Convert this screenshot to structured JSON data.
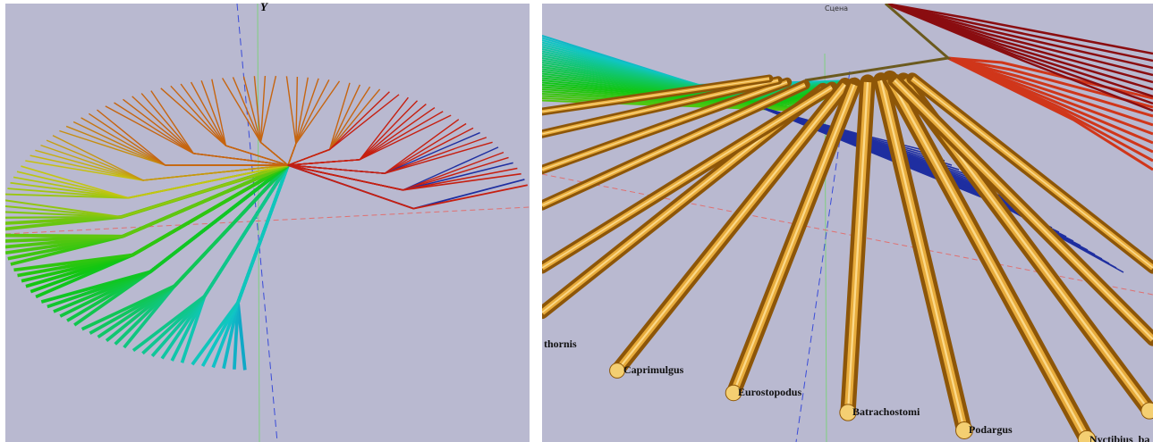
{
  "left_panel": {
    "axis_label": "Y"
  },
  "right_panel": {
    "scene_label": "Сцена",
    "leaf_labels": [
      "thornis",
      "Caprimulgus",
      "Eurostopodus",
      "Batrachostomi",
      "Podargus",
      "Nyctibius_ba"
    ]
  }
}
